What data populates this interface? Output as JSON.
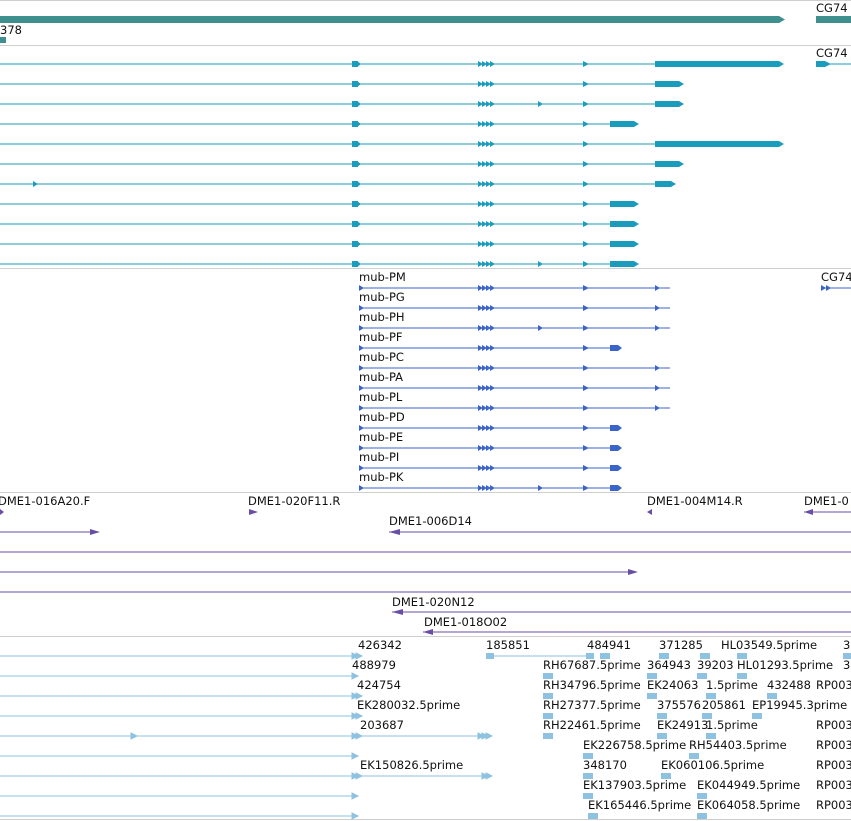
{
  "colors": {
    "background": "#ffffff",
    "divider": "#cfcfcf",
    "gene": "#3f8f8f",
    "transcript": "#1a9cbc",
    "protein": "#3a64c8",
    "clone": "#6a4ea6",
    "est": "#8ec2e0"
  },
  "track_gene": {
    "labels": [
      "378",
      "CG74"
    ]
  },
  "track_transcripts": {
    "labels": [
      "CG74"
    ],
    "row_count": 11
  },
  "track_proteins": {
    "labels": [
      "mub-PM",
      "mub-PG",
      "mub-PH",
      "mub-PF",
      "mub-PC",
      "mub-PA",
      "mub-PL",
      "mub-PD",
      "mub-PE",
      "mub-PI",
      "mub-PK",
      "CG74"
    ]
  },
  "track_clones": {
    "labels": [
      "DME1-016A20.F",
      "DME1-020F11.R",
      "DME1-004M14.R",
      "DME1-0",
      "DME1-006D14",
      "DME1-020N12",
      "DME1-018O02"
    ]
  },
  "track_ests": {
    "labels": [
      "426342",
      "185851",
      "484941",
      "371285",
      "HL03549.5prime",
      "3",
      "488979",
      "RH67687.5prime",
      "364943",
      "39203",
      "HL01293.5prime",
      "3",
      "424754",
      "RH34796.5prime",
      "EK24063",
      "1.5prime",
      "432488",
      "RP003",
      "EK280032.5prime",
      "RH27377.5prime",
      "375576",
      "205861",
      "EP19945.3prime",
      "203687",
      "RH22461.5prime",
      "EK24913",
      "1.5prime",
      "RP003",
      "EK226758.5prime",
      "RH54403.5prime",
      "RP003",
      "EK150826.5prime",
      "348170",
      "EK060106.5prime",
      "RP003",
      "EK137903.5prime",
      "EK044949.5prime",
      "RP003",
      "EK165446.5prime",
      "EK064058.5prime",
      "RP003"
    ]
  }
}
